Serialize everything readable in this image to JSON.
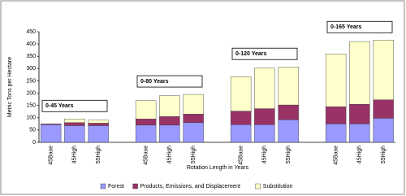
{
  "chart_data": {
    "type": "bar",
    "stacked": true,
    "y_label": "Metric Tons per Hectare",
    "x_label": "Rotation Length in Years",
    "categories": [
      "45Base",
      "45High",
      "55High",
      "45Base",
      "45High",
      "55High",
      "45Base",
      "45High",
      "55High",
      "45Base",
      "45High",
      "55High"
    ],
    "group_labels": [
      "0-45 Years",
      "0-80 Years",
      "0-120 Years",
      "0-165 Years"
    ],
    "series": [
      {
        "name": "Forest",
        "color": "#9999ff",
        "values": [
          72,
          68,
          68,
          70,
          70,
          80,
          72,
          72,
          92,
          75,
          75,
          98
        ]
      },
      {
        "name": "Products, Emissions, and Displacement",
        "color": "#993366",
        "values": [
          3,
          12,
          10,
          25,
          35,
          35,
          55,
          65,
          60,
          70,
          80,
          75
        ]
      },
      {
        "name": "Substitution",
        "color": "#ffffcc",
        "values": [
          0,
          15,
          12,
          75,
          85,
          80,
          140,
          165,
          155,
          215,
          255,
          243
        ]
      }
    ],
    "ylim": [
      0,
      450
    ],
    "yticks": [
      0,
      50,
      100,
      150,
      200,
      250,
      300,
      350,
      400,
      450
    ],
    "legend": "bottom"
  }
}
